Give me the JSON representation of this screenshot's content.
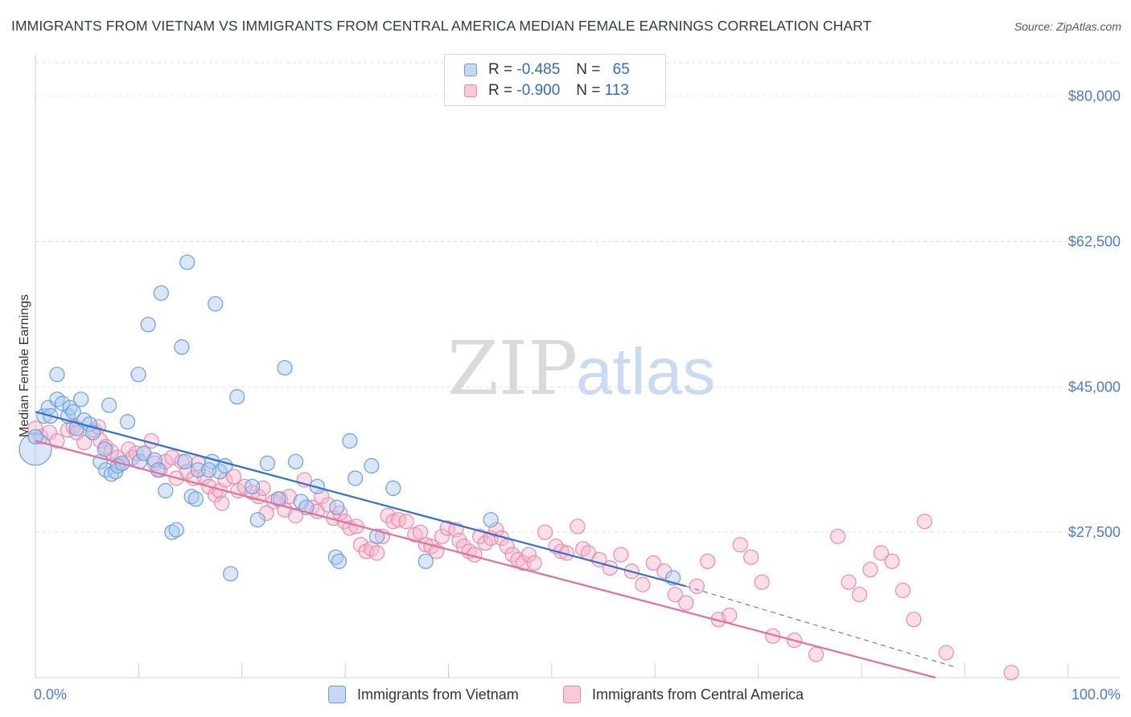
{
  "title": "IMMIGRANTS FROM VIETNAM VS IMMIGRANTS FROM CENTRAL AMERICA MEDIAN FEMALE EARNINGS CORRELATION CHART",
  "source": "Source: ZipAtlas.com",
  "watermark": {
    "zip": "ZIP",
    "atlas": "atlas"
  },
  "colors": {
    "vietnam_fill": "#a9c8f0",
    "vietnam_stroke": "#6a9ee0",
    "vietnam_line": "#2f6fd1",
    "central_fill": "#f6b6cb",
    "central_stroke": "#ea8aab",
    "central_line": "#e76d98",
    "axis_text": "#4a7cc9",
    "grid": "#e2e2e2"
  },
  "legend": {
    "rows": [
      {
        "r_label": "R =",
        "r_value": "-0.485",
        "n_label": "N =",
        "n_value": "65"
      },
      {
        "r_label": "R =",
        "r_value": "-0.900",
        "n_label": "N =",
        "n_value": "113"
      }
    ]
  },
  "bottom_legend": {
    "series1": "Immigrants from Vietnam",
    "series2": "Immigrants from Central America"
  },
  "chart_data": {
    "type": "scatter",
    "title": "IMMIGRANTS FROM VIETNAM VS IMMIGRANTS FROM CENTRAL AMERICA MEDIAN FEMALE EARNINGS CORRELATION CHART",
    "xlabel": "",
    "ylabel": "Median Female Earnings",
    "xlim": [
      0,
      100
    ],
    "ylim": [
      10000,
      85000
    ],
    "x_tick_labels": [
      "0.0%",
      "100.0%"
    ],
    "y_ticks": [
      27500,
      45000,
      62500,
      80000
    ],
    "y_tick_labels": [
      "$27,500",
      "$45,000",
      "$62,500",
      "$80,000"
    ],
    "grid": true,
    "legend_position": "top-center",
    "series": [
      {
        "name": "Immigrants from Vietnam",
        "R": -0.485,
        "N": 65,
        "trend": {
          "x0": 0,
          "y0": 42000,
          "x1": 60,
          "y1": 21000,
          "dashed_to_x": 85,
          "dashed_to_y": 11200
        },
        "points": [
          [
            0,
            37500
          ],
          [
            0,
            39000
          ],
          [
            0.8,
            41500
          ],
          [
            1.2,
            42500
          ],
          [
            1.4,
            41500
          ],
          [
            2,
            43500
          ],
          [
            2,
            46500
          ],
          [
            2.5,
            43000
          ],
          [
            3,
            41500
          ],
          [
            3.2,
            42500
          ],
          [
            3.5,
            42000
          ],
          [
            3.8,
            40000
          ],
          [
            4.2,
            43500
          ],
          [
            4.5,
            41000
          ],
          [
            5,
            40500
          ],
          [
            5.3,
            39500
          ],
          [
            6,
            36000
          ],
          [
            6.4,
            37500
          ],
          [
            6.5,
            35000
          ],
          [
            6.8,
            42800
          ],
          [
            7,
            34500
          ],
          [
            7.4,
            34800
          ],
          [
            7.6,
            35500
          ],
          [
            8,
            35800
          ],
          [
            8.5,
            40800
          ],
          [
            9.5,
            46500
          ],
          [
            9.6,
            36000
          ],
          [
            10,
            37000
          ],
          [
            10.4,
            52500
          ],
          [
            11,
            36200
          ],
          [
            11.3,
            35000
          ],
          [
            11.6,
            56300
          ],
          [
            12,
            32500
          ],
          [
            12.6,
            27500
          ],
          [
            13,
            27800
          ],
          [
            13.5,
            49800
          ],
          [
            13.8,
            36000
          ],
          [
            14,
            60000
          ],
          [
            14.4,
            31800
          ],
          [
            15,
            35000
          ],
          [
            16.3,
            36000
          ],
          [
            16.6,
            55000
          ],
          [
            17,
            34800
          ],
          [
            17.5,
            35500
          ],
          [
            14.8,
            31500
          ],
          [
            18,
            22500
          ],
          [
            18.6,
            43800
          ],
          [
            16,
            35000
          ],
          [
            20,
            33000
          ],
          [
            20.5,
            29000
          ],
          [
            21.4,
            35800
          ],
          [
            22.4,
            31500
          ],
          [
            23,
            47300
          ],
          [
            24,
            36000
          ],
          [
            26,
            33000
          ],
          [
            24.5,
            31200
          ],
          [
            25,
            30500
          ],
          [
            27.7,
            24500
          ],
          [
            28,
            24000
          ],
          [
            29,
            38500
          ],
          [
            27.8,
            30500
          ],
          [
            29.5,
            34000
          ],
          [
            31.5,
            27000
          ],
          [
            31,
            35500
          ],
          [
            36,
            24000
          ],
          [
            33,
            32800
          ],
          [
            42,
            29000
          ],
          [
            58.8,
            22000
          ]
        ]
      },
      {
        "name": "Immigrants from Central America",
        "R": -0.9,
        "N": 113,
        "trend": {
          "x0": 0,
          "y0": 38500,
          "x1": 83,
          "y1": 10000
        },
        "points": [
          [
            0,
            40000
          ],
          [
            0.5,
            39000
          ],
          [
            1.3,
            39500
          ],
          [
            2,
            38500
          ],
          [
            3,
            39800
          ],
          [
            3.5,
            40200
          ],
          [
            3.8,
            39500
          ],
          [
            4.5,
            38300
          ],
          [
            5.4,
            39800
          ],
          [
            5.8,
            40200
          ],
          [
            6,
            38500
          ],
          [
            6.5,
            37800
          ],
          [
            7,
            37200
          ],
          [
            7.6,
            36500
          ],
          [
            8,
            35800
          ],
          [
            8.6,
            37500
          ],
          [
            9,
            36500
          ],
          [
            9.3,
            37000
          ],
          [
            10,
            37000
          ],
          [
            10.7,
            38500
          ],
          [
            11,
            35800
          ],
          [
            11.5,
            35000
          ],
          [
            12,
            36000
          ],
          [
            12.6,
            36500
          ],
          [
            13,
            34000
          ],
          [
            13.5,
            36000
          ],
          [
            14,
            34800
          ],
          [
            14.6,
            34000
          ],
          [
            15,
            35800
          ],
          [
            15.6,
            34200
          ],
          [
            16,
            33000
          ],
          [
            16.6,
            32000
          ],
          [
            17,
            32500
          ],
          [
            17.2,
            31000
          ],
          [
            17.5,
            33800
          ],
          [
            18.3,
            34200
          ],
          [
            18.7,
            32500
          ],
          [
            19.3,
            33000
          ],
          [
            20,
            32300
          ],
          [
            20.6,
            31800
          ],
          [
            21,
            32800
          ],
          [
            21.3,
            29800
          ],
          [
            22,
            31200
          ],
          [
            22.6,
            31500
          ],
          [
            23,
            30200
          ],
          [
            23.4,
            31800
          ],
          [
            24,
            29500
          ],
          [
            24.8,
            33800
          ],
          [
            25.5,
            30500
          ],
          [
            26,
            30000
          ],
          [
            26.4,
            31800
          ],
          [
            27,
            30800
          ],
          [
            27.5,
            29200
          ],
          [
            28.1,
            29800
          ],
          [
            28.5,
            28800
          ],
          [
            29,
            28000
          ],
          [
            29.6,
            28200
          ],
          [
            30,
            26000
          ],
          [
            30.5,
            25200
          ],
          [
            31,
            25500
          ],
          [
            31.5,
            25000
          ],
          [
            32,
            27000
          ],
          [
            32.5,
            29500
          ],
          [
            33,
            28800
          ],
          [
            33.5,
            29000
          ],
          [
            34.2,
            28800
          ],
          [
            35,
            27200
          ],
          [
            35.5,
            27500
          ],
          [
            36,
            26000
          ],
          [
            36.5,
            25800
          ],
          [
            37,
            25200
          ],
          [
            37.5,
            27000
          ],
          [
            38,
            28000
          ],
          [
            38.8,
            27800
          ],
          [
            39.1,
            26500
          ],
          [
            39.5,
            25800
          ],
          [
            40,
            25200
          ],
          [
            40.5,
            24800
          ],
          [
            41,
            27000
          ],
          [
            41.5,
            26200
          ],
          [
            42,
            26800
          ],
          [
            42.5,
            27800
          ],
          [
            43,
            26800
          ],
          [
            43.5,
            25800
          ],
          [
            44,
            24800
          ],
          [
            44.5,
            24200
          ],
          [
            45,
            23800
          ],
          [
            45.5,
            24800
          ],
          [
            46,
            23800
          ],
          [
            47,
            27500
          ],
          [
            48,
            25800
          ],
          [
            48.5,
            25200
          ],
          [
            49,
            25000
          ],
          [
            50,
            28200
          ],
          [
            50.5,
            25500
          ],
          [
            51,
            25000
          ],
          [
            52,
            24200
          ],
          [
            53,
            23200
          ],
          [
            54,
            24800
          ],
          [
            55,
            22800
          ],
          [
            56,
            21200
          ],
          [
            57,
            23800
          ],
          [
            58,
            22800
          ],
          [
            59,
            20000
          ],
          [
            60,
            19000
          ],
          [
            61,
            21000
          ],
          [
            62,
            24000
          ],
          [
            63,
            17000
          ],
          [
            64,
            17500
          ],
          [
            65,
            26000
          ],
          [
            66,
            24500
          ],
          [
            67,
            21500
          ],
          [
            68,
            15000
          ],
          [
            70,
            14500
          ],
          [
            72,
            12800
          ],
          [
            74,
            27000
          ],
          [
            75,
            21500
          ],
          [
            76,
            20000
          ],
          [
            77,
            23000
          ],
          [
            78,
            25000
          ],
          [
            79,
            24000
          ],
          [
            80,
            20500
          ],
          [
            81,
            17000
          ],
          [
            82,
            28800
          ],
          [
            84,
            13000
          ],
          [
            90,
            10600
          ]
        ]
      }
    ]
  }
}
